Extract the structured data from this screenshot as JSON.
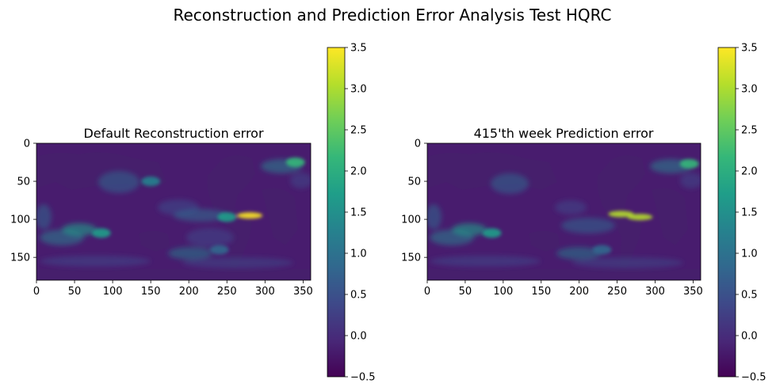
{
  "figure": {
    "suptitle": "Reconstruction and Prediction Error Analysis Test HQRC"
  },
  "colors": {
    "viridis": [
      "#440154",
      "#482878",
      "#3e4989",
      "#31688e",
      "#26828e",
      "#1f9e89",
      "#35b779",
      "#6ece58",
      "#b5de2b",
      "#fde725"
    ],
    "land": "#46226c",
    "background": "#ffffff",
    "ink": "#000000"
  },
  "chart_data": [
    {
      "type": "heatmap",
      "title": "Default Reconstruction error",
      "xlabel": "",
      "ylabel": "",
      "x_extent": [
        0,
        360
      ],
      "y_extent": [
        0,
        180
      ],
      "y_inverted": true,
      "xticks": [
        0,
        50,
        100,
        150,
        200,
        250,
        300,
        350
      ],
      "yticks": [
        0,
        50,
        100,
        150
      ],
      "colorbar": {
        "range": [
          -0.5,
          3.5
        ],
        "ticks": [
          "−0.5",
          "0.0",
          "0.5",
          "1.0",
          "1.5",
          "2.0",
          "2.5",
          "3.0",
          "3.5"
        ],
        "colormap": "viridis"
      },
      "features": [
        {
          "x": 280,
          "y": 95,
          "value": 3.4
        },
        {
          "x": 250,
          "y": 97,
          "value": 1.6
        },
        {
          "x": 85,
          "y": 118,
          "value": 1.6
        },
        {
          "x": 340,
          "y": 25,
          "value": 2.3
        },
        {
          "x": 150,
          "y": 50,
          "value": 1.2
        },
        {
          "x": 240,
          "y": 140,
          "value": 1.0
        }
      ]
    },
    {
      "type": "heatmap",
      "title": "415'th week Prediction error",
      "xlabel": "",
      "ylabel": "",
      "x_extent": [
        0,
        360
      ],
      "y_extent": [
        0,
        180
      ],
      "y_inverted": true,
      "xticks": [
        0,
        50,
        100,
        150,
        200,
        250,
        300,
        350
      ],
      "yticks": [
        0,
        50,
        100,
        150
      ],
      "colorbar": {
        "range": [
          -0.5,
          3.5
        ],
        "ticks": [
          "−0.5",
          "0.0",
          "0.5",
          "1.0",
          "1.5",
          "2.0",
          "2.5",
          "3.0",
          "3.5"
        ],
        "colormap": "viridis"
      },
      "features": [
        {
          "x": 255,
          "y": 93,
          "value": 3.0
        },
        {
          "x": 280,
          "y": 97,
          "value": 3.2
        },
        {
          "x": 85,
          "y": 118,
          "value": 1.5
        },
        {
          "x": 345,
          "y": 27,
          "value": 2.2
        },
        {
          "x": 230,
          "y": 140,
          "value": 0.9
        }
      ]
    }
  ]
}
